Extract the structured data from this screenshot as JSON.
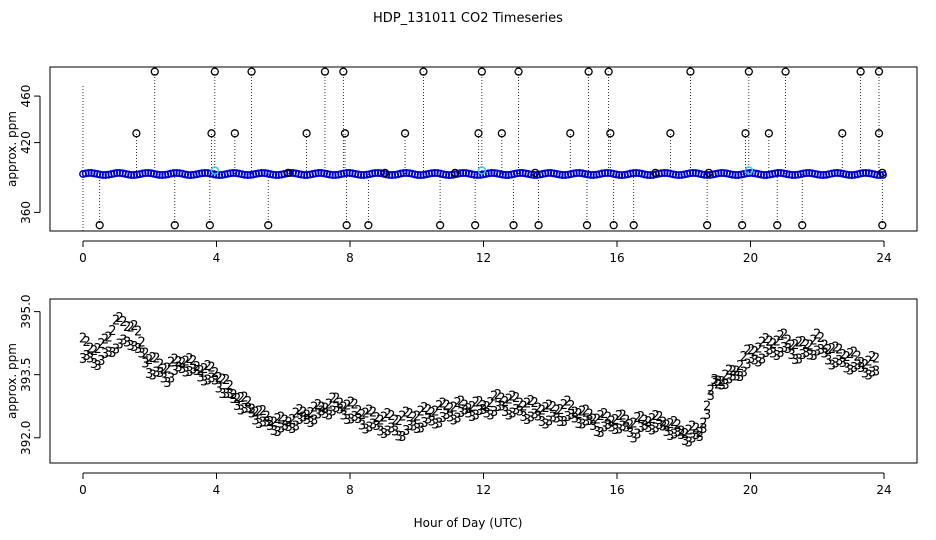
{
  "title": "HDP_131011  CO2 Timeseries",
  "xlabel": "Hour of Day (UTC)",
  "colors": {
    "blue": "#0000cc",
    "green": "#22cc22",
    "cyan": "#33ccee",
    "black": "#000000"
  },
  "chart_data": [
    {
      "type": "scatter",
      "ylabel": "approx. ppm",
      "xlim": [
        0,
        24
      ],
      "ylim": [
        344,
        485
      ],
      "xticks": [
        0,
        4,
        8,
        12,
        16,
        20,
        24
      ],
      "yticks": [
        360,
        420,
        460
      ],
      "baseline": 393,
      "outliers_high": [
        {
          "x": 2.15,
          "y": 481
        },
        {
          "x": 3.95,
          "y": 481
        },
        {
          "x": 5.05,
          "y": 481
        },
        {
          "x": 7.25,
          "y": 481
        },
        {
          "x": 7.8,
          "y": 481
        },
        {
          "x": 10.2,
          "y": 481
        },
        {
          "x": 11.95,
          "y": 481
        },
        {
          "x": 13.05,
          "y": 481
        },
        {
          "x": 15.15,
          "y": 481
        },
        {
          "x": 15.75,
          "y": 481
        },
        {
          "x": 18.2,
          "y": 481
        },
        {
          "x": 19.95,
          "y": 481
        },
        {
          "x": 21.05,
          "y": 481
        },
        {
          "x": 23.3,
          "y": 481
        },
        {
          "x": 23.85,
          "y": 481
        },
        {
          "x": 1.6,
          "y": 428
        },
        {
          "x": 3.85,
          "y": 428
        },
        {
          "x": 4.55,
          "y": 428
        },
        {
          "x": 6.7,
          "y": 428
        },
        {
          "x": 7.85,
          "y": 428
        },
        {
          "x": 9.65,
          "y": 428
        },
        {
          "x": 11.85,
          "y": 428
        },
        {
          "x": 12.55,
          "y": 428
        },
        {
          "x": 14.6,
          "y": 428
        },
        {
          "x": 15.8,
          "y": 428
        },
        {
          "x": 17.6,
          "y": 428
        },
        {
          "x": 19.85,
          "y": 428
        },
        {
          "x": 20.55,
          "y": 428
        },
        {
          "x": 22.75,
          "y": 428
        },
        {
          "x": 23.85,
          "y": 428
        },
        {
          "x": 6.15,
          "y": 394
        },
        {
          "x": 9.05,
          "y": 394
        },
        {
          "x": 11.15,
          "y": 394
        },
        {
          "x": 13.55,
          "y": 394
        },
        {
          "x": 17.15,
          "y": 394
        },
        {
          "x": 18.75,
          "y": 394
        },
        {
          "x": 23.95,
          "y": 394
        }
      ],
      "outliers_low": [
        {
          "x": 0.5,
          "y": 349
        },
        {
          "x": 2.75,
          "y": 349
        },
        {
          "x": 3.8,
          "y": 349
        },
        {
          "x": 5.55,
          "y": 349
        },
        {
          "x": 7.9,
          "y": 349
        },
        {
          "x": 8.55,
          "y": 349
        },
        {
          "x": 10.7,
          "y": 349
        },
        {
          "x": 11.75,
          "y": 349
        },
        {
          "x": 12.9,
          "y": 349
        },
        {
          "x": 13.65,
          "y": 349
        },
        {
          "x": 15.1,
          "y": 349
        },
        {
          "x": 15.9,
          "y": 349
        },
        {
          "x": 16.5,
          "y": 349
        },
        {
          "x": 18.7,
          "y": 349
        },
        {
          "x": 19.75,
          "y": 349
        },
        {
          "x": 20.8,
          "y": 349
        },
        {
          "x": 21.55,
          "y": 349
        },
        {
          "x": 23.95,
          "y": 349
        }
      ],
      "cyan_points": [
        {
          "x": 3.95,
          "y": 396
        },
        {
          "x": 11.95,
          "y": 396
        },
        {
          "x": 19.95,
          "y": 396
        }
      ]
    },
    {
      "type": "line",
      "ylabel": "approx. ppm",
      "xlim": [
        0,
        24
      ],
      "ylim": [
        391.4,
        395.3
      ],
      "xticks": [
        0,
        4,
        8,
        12,
        16,
        20,
        24
      ],
      "yticks": [
        392.0,
        393.5,
        395.0
      ],
      "ytick_labels": [
        "392.0",
        "393.5",
        "395.0"
      ],
      "series": [
        {
          "name": "3",
          "x": [
            0,
            0.5,
            1.0,
            1.5,
            2.0,
            2.5,
            3.0,
            3.5,
            4.0,
            4.5,
            5.0,
            5.5,
            6.0,
            6.5,
            7.0,
            7.5,
            8.0,
            8.5,
            9.0,
            9.5,
            10.0,
            10.5,
            11.0,
            11.5,
            12.0,
            12.5,
            13.0,
            13.5,
            14.0,
            14.5,
            15.0,
            15.5,
            16.0,
            16.5,
            17.0,
            17.5,
            18.0,
            18.5,
            18.9,
            19.5,
            20.0,
            20.5,
            21.0,
            21.5,
            22.0,
            22.5,
            23.0,
            23.5,
            23.8
          ],
          "y": [
            393.9,
            393.8,
            394.2,
            394.3,
            393.6,
            393.4,
            393.7,
            393.5,
            393.3,
            392.9,
            392.6,
            392.3,
            392.2,
            392.4,
            392.5,
            392.7,
            392.5,
            392.3,
            392.2,
            392.1,
            392.3,
            392.4,
            392.5,
            392.6,
            392.6,
            392.7,
            392.6,
            392.5,
            392.4,
            392.5,
            392.4,
            392.2,
            392.3,
            392.1,
            392.3,
            392.2,
            392.0,
            392.0,
            393.3,
            393.4,
            393.8,
            394.0,
            394.1,
            393.9,
            394.1,
            393.8,
            393.7,
            393.6,
            393.5
          ]
        },
        {
          "name": "2",
          "x": [
            0,
            0.5,
            1.0,
            1.5,
            2.0,
            2.5,
            3.0,
            3.5,
            4.0,
            4.5,
            5.0,
            5.5,
            6.0,
            6.5,
            7.0,
            7.5,
            8.0,
            8.5,
            9.0,
            9.5,
            10.0,
            10.5,
            11.0,
            11.5,
            12.0,
            12.5,
            13.0,
            13.5,
            14.0,
            14.5,
            15.0,
            15.5,
            16.0,
            16.5,
            17.0,
            17.5,
            18.0,
            18.5,
            18.9,
            19.5,
            20.0,
            20.5,
            21.0,
            21.5,
            22.0,
            22.5,
            23.0,
            23.5,
            23.8
          ],
          "y": [
            394.3,
            394.1,
            394.8,
            394.7,
            393.9,
            393.7,
            393.9,
            393.7,
            393.6,
            393.1,
            392.8,
            392.5,
            392.4,
            392.6,
            392.7,
            392.9,
            392.8,
            392.6,
            392.5,
            392.5,
            392.6,
            392.7,
            392.8,
            392.8,
            392.8,
            393.0,
            392.9,
            392.8,
            392.7,
            392.8,
            392.6,
            392.5,
            392.5,
            392.4,
            392.5,
            392.4,
            392.2,
            392.2,
            393.3,
            393.6,
            394.1,
            394.3,
            394.4,
            394.2,
            394.4,
            394.1,
            394.0,
            393.8,
            393.9
          ]
        }
      ]
    }
  ]
}
